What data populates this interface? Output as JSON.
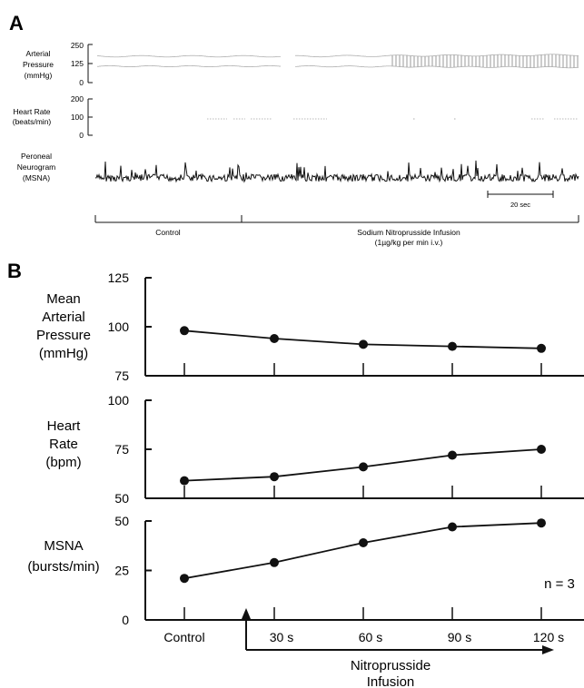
{
  "panel_a": {
    "letter": "A",
    "traces": [
      {
        "label_lines": [
          "Arterial",
          "Pressure",
          "(mmHg)"
        ],
        "ticks": [
          "250",
          "125",
          "0"
        ]
      },
      {
        "label_lines": [
          "Heart Rate",
          "(beats/min)"
        ],
        "ticks": [
          "200",
          "100",
          "0"
        ]
      },
      {
        "label_lines": [
          "Peroneal",
          "Neurogram",
          "(MSNA)"
        ],
        "ticks": []
      }
    ],
    "scale_bar": "20 sec",
    "phases": [
      {
        "label_lines": [
          "Control"
        ]
      },
      {
        "label_lines": [
          "Sodium Nitroprusside Infusion",
          "(1µg/kg per min i.v.)"
        ]
      }
    ]
  },
  "chart_data": [
    {
      "type": "line",
      "panel": "B",
      "ylabel": "Mean Arterial Pressure (mmHg)",
      "ylabel_lines": [
        "Mean",
        "Arterial",
        "Pressure",
        "(mmHg)"
      ],
      "ylim": [
        75,
        125
      ],
      "yticks": [
        75,
        100,
        125
      ],
      "categories": [
        "Control",
        "30 s",
        "60 s",
        "90 s",
        "120 s"
      ],
      "values": [
        98,
        94,
        91,
        90,
        89
      ]
    },
    {
      "type": "line",
      "panel": "B",
      "ylabel": "Heart Rate (bpm)",
      "ylabel_lines": [
        "Heart",
        "Rate",
        "(bpm)"
      ],
      "ylim": [
        50,
        100
      ],
      "yticks": [
        50,
        75,
        100
      ],
      "categories": [
        "Control",
        "30 s",
        "60 s",
        "90 s",
        "120 s"
      ],
      "values": [
        59,
        61,
        66,
        72,
        75
      ]
    },
    {
      "type": "line",
      "panel": "B",
      "ylabel": "MSNA (bursts/min)",
      "ylabel_lines": [
        "MSNA",
        "(bursts/min)"
      ],
      "ylim": [
        0,
        50
      ],
      "yticks": [
        0,
        25,
        50
      ],
      "categories": [
        "Control",
        "30 s",
        "60 s",
        "90 s",
        "120 s"
      ],
      "values": [
        21,
        29,
        39,
        47,
        49
      ],
      "annotation": "n = 3"
    }
  ],
  "panel_b": {
    "letter": "B",
    "infusion_label_lines": [
      "Nitroprusside",
      "Infusion"
    ]
  }
}
